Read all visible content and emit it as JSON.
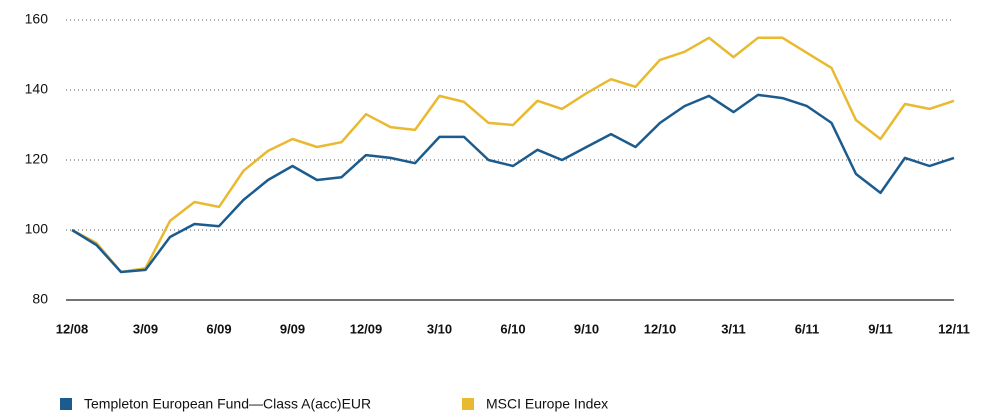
{
  "chart_data": {
    "type": "line",
    "categories": [
      "12/08",
      null,
      null,
      "3/09",
      null,
      null,
      "6/09",
      null,
      null,
      "9/09",
      null,
      null,
      "12/09",
      null,
      null,
      "3/10",
      null,
      null,
      "6/10",
      null,
      null,
      "9/10",
      null,
      null,
      "12/10",
      null,
      null,
      "3/11",
      null,
      null,
      "6/11",
      null,
      null,
      "9/11",
      null,
      null,
      "12/11"
    ],
    "series": [
      {
        "name": "Templeton European Fund—Class A(acc)EUR",
        "color": "#1b5b8e",
        "values": [
          100,
          95.7,
          88,
          88.6,
          98,
          101.7,
          101.1,
          108.6,
          114.3,
          118.3,
          114.3,
          115.1,
          121.4,
          120.6,
          119.1,
          126.6,
          126.6,
          120,
          118.3,
          122.9,
          120,
          123.7,
          127.4,
          123.7,
          130.6,
          135.4,
          138.3,
          133.7,
          138.6,
          137.7,
          135.4,
          130.6,
          116,
          110.6,
          120.6,
          118.3,
          120.6
        ]
      },
      {
        "name": "MSCI Europe Index",
        "color": "#e9b92f",
        "values": [
          100,
          96.3,
          88,
          89.1,
          102.6,
          108,
          106.6,
          116.9,
          122.6,
          126,
          123.7,
          125.1,
          133.1,
          129.4,
          128.6,
          138.3,
          136.6,
          130.6,
          130,
          136.9,
          134.6,
          139.1,
          143.1,
          140.9,
          148.6,
          150.9,
          154.9,
          149.4,
          154.9,
          154.9,
          150.6,
          146.3,
          131.4,
          126,
          136,
          134.6,
          136.9
        ]
      }
    ],
    "ylim": [
      80,
      160
    ],
    "yticks": [
      80,
      100,
      120,
      140,
      160
    ],
    "grid": true,
    "legend": "bottom"
  }
}
